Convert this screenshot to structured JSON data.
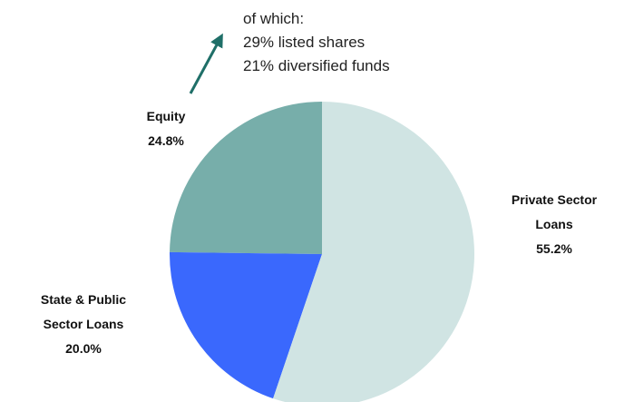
{
  "chart_data": {
    "type": "pie",
    "categories": [
      "Private Sector Loans",
      "State & Public Sector Loans",
      "Equity"
    ],
    "values": [
      55.2,
      20.0,
      24.8
    ],
    "value_labels": [
      "55.2%",
      "20.0%",
      "24.8%"
    ],
    "colors": [
      "#d0e4e3",
      "#3a68fd",
      "#77aeaa"
    ],
    "annotation": [
      "of which:",
      "29% listed shares",
      "21% diversified funds"
    ]
  }
}
